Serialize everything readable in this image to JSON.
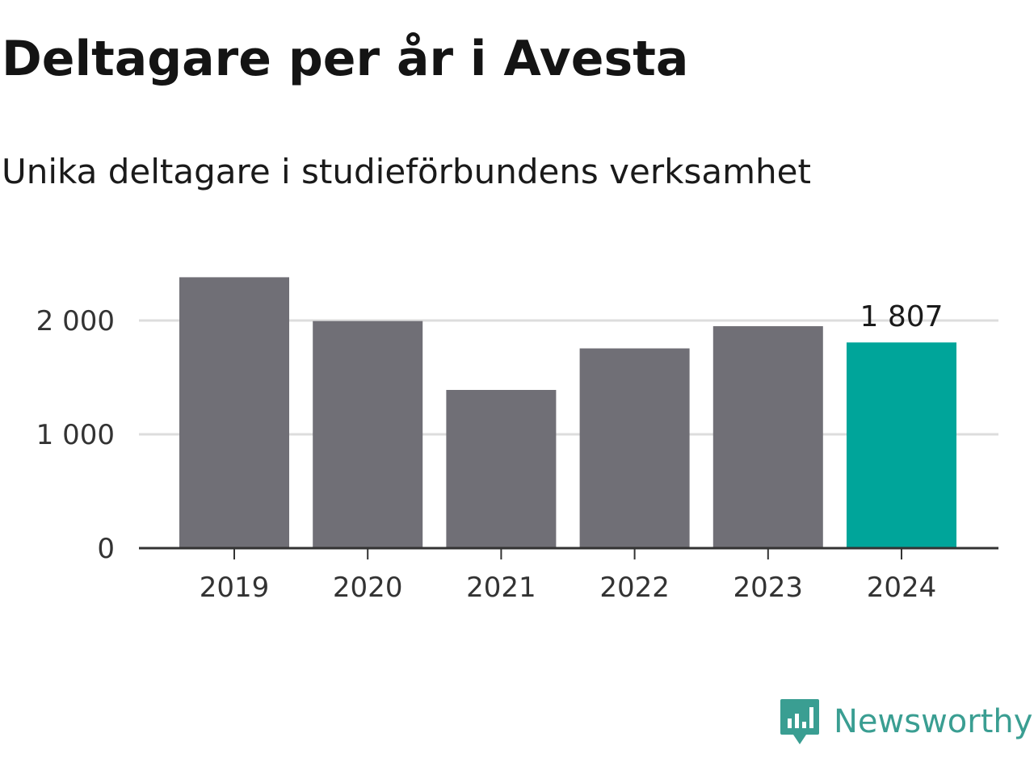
{
  "header": {
    "title": "Deltagare per år i Avesta",
    "subtitle": "Unika deltagare i studieförbundens verksamhet"
  },
  "brand": {
    "name": "Newsworthy",
    "icon": "newsworthy-logo-icon",
    "color": "#3a9e92"
  },
  "colors": {
    "bar": "#706f76",
    "highlight": "#00a59a",
    "grid": "#dddddd",
    "axis": "#333333"
  },
  "chart_data": {
    "type": "bar",
    "categories": [
      "2019",
      "2020",
      "2021",
      "2022",
      "2023",
      "2024"
    ],
    "values": [
      2380,
      1995,
      1390,
      1755,
      1950,
      1807
    ],
    "highlight_index": 5,
    "data_labels": [
      {
        "index": 5,
        "text": "1 807"
      }
    ],
    "title": "Deltagare per år i Avesta",
    "subtitle": "Unika deltagare i studieförbundens verksamhet",
    "xlabel": "",
    "ylabel": "",
    "ylim": [
      0,
      2400
    ],
    "yticks": [
      0,
      1000,
      2000
    ],
    "ytick_labels": [
      "0",
      "1 000",
      "2 000"
    ],
    "grid": true,
    "legend": "none"
  }
}
